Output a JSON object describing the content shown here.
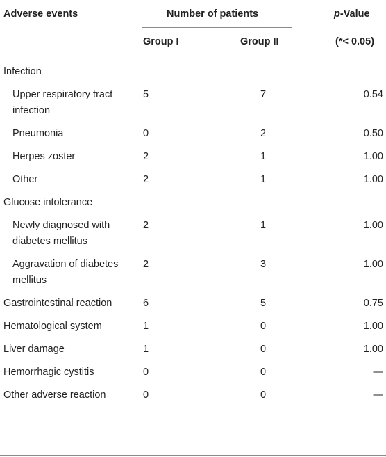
{
  "header": {
    "adverse_events": "Adverse events",
    "number_of_patients": "Number of patients",
    "p_value_italic": "p",
    "p_value_rest": "-Value",
    "group_1": "Group I",
    "group_2": "Group II",
    "p_threshold": "(*< 0.05)"
  },
  "rows": [
    {
      "event": "Infection",
      "group_1": "",
      "group_2": "",
      "p_value": ""
    },
    {
      "event": "Upper respiratory tract infection",
      "group_1": "5",
      "group_2": "7",
      "p_value": "0.54"
    },
    {
      "event": "Pneumonia",
      "group_1": "0",
      "group_2": "2",
      "p_value": "0.50"
    },
    {
      "event": "Herpes zoster",
      "group_1": "2",
      "group_2": "1",
      "p_value": "1.00"
    },
    {
      "event": "Other",
      "group_1": "2",
      "group_2": "1",
      "p_value": "1.00"
    },
    {
      "event": "Glucose intolerance",
      "group_1": "",
      "group_2": "",
      "p_value": ""
    },
    {
      "event": "Newly diagnosed with diabetes mellitus",
      "group_1": "2",
      "group_2": "1",
      "p_value": "1.00"
    },
    {
      "event": "Aggravation of diabetes mellitus",
      "group_1": "2",
      "group_2": "3",
      "p_value": "1.00"
    },
    {
      "event": "Gastrointestinal reaction",
      "group_1": "6",
      "group_2": "5",
      "p_value": "0.75"
    },
    {
      "event": "Hematological system",
      "group_1": "1",
      "group_2": "0",
      "p_value": "1.00"
    },
    {
      "event": "Liver damage",
      "group_1": "1",
      "group_2": "0",
      "p_value": "1.00"
    },
    {
      "event": "Hemorrhagic cystitis",
      "group_1": "0",
      "group_2": "0",
      "p_value": "—"
    },
    {
      "event": "Other adverse reaction",
      "group_1": "0",
      "group_2": "0",
      "p_value": "—"
    }
  ]
}
